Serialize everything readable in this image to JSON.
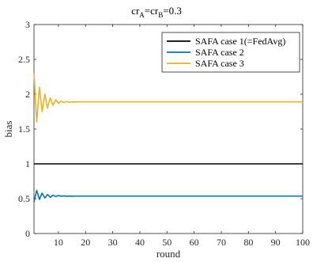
{
  "chart_data": {
    "type": "line",
    "title": {
      "prefix1": "cr",
      "sub1": "A",
      "mid": "=cr",
      "sub2": "B",
      "suffix": "=0.3"
    },
    "xlabel": "round",
    "ylabel": "bias",
    "xlim": [
      1,
      100
    ],
    "ylim": [
      0,
      3
    ],
    "xticks": [
      10,
      20,
      30,
      40,
      50,
      60,
      70,
      80,
      90,
      100
    ],
    "yticks": [
      0,
      0.5,
      1,
      1.5,
      2,
      2.5,
      3
    ],
    "grid": false,
    "legend_position": "top-right",
    "series": [
      {
        "name": "SAFA case 1(=FedAvg)",
        "color": "#000000",
        "x": [
          1,
          100
        ],
        "y": [
          1.0,
          1.0
        ]
      },
      {
        "name": "SAFA case 2",
        "color": "#0072BD",
        "x": [
          1,
          2,
          3,
          4,
          5,
          6,
          7,
          8,
          9,
          10,
          11,
          12,
          13,
          14,
          15,
          16,
          17,
          18,
          19,
          20,
          100
        ],
        "y": [
          0.45,
          0.62,
          0.49,
          0.58,
          0.51,
          0.56,
          0.52,
          0.55,
          0.53,
          0.545,
          0.535,
          0.54,
          0.535,
          0.538,
          0.536,
          0.537,
          0.537,
          0.537,
          0.537,
          0.537,
          0.537
        ]
      },
      {
        "name": "SAFA case 3",
        "color": "#EDB120",
        "x": [
          1,
          2,
          3,
          4,
          5,
          6,
          7,
          8,
          9,
          10,
          11,
          12,
          13,
          14,
          15,
          16,
          17,
          18,
          19,
          20,
          100
        ],
        "y": [
          2.3,
          1.6,
          2.1,
          1.75,
          2.0,
          1.8,
          1.95,
          1.84,
          1.92,
          1.87,
          1.9,
          1.88,
          1.895,
          1.885,
          1.89,
          1.888,
          1.89,
          1.89,
          1.89,
          1.89,
          1.89
        ]
      }
    ]
  }
}
